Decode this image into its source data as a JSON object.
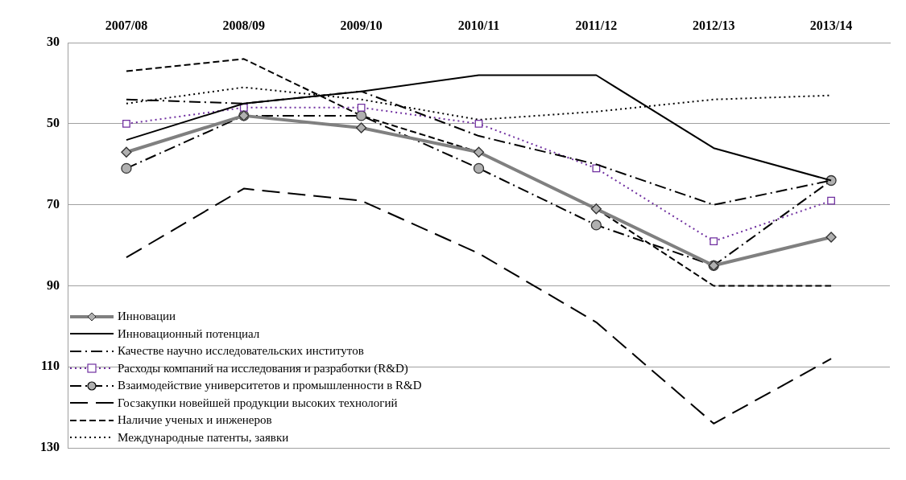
{
  "chart_data": {
    "type": "line",
    "categories": [
      "2007/08",
      "2008/09",
      "2009/10",
      "2010/11",
      "2011/12",
      "2012/13",
      "2013/14"
    ],
    "ylim": [
      130,
      30
    ],
    "yticks": [
      30,
      50,
      70,
      90,
      110,
      130
    ],
    "grid": "y",
    "legend": "bottom left",
    "series": [
      {
        "name": "Инновации",
        "color": "#808080",
        "marker": "diamond",
        "line_style": "solid",
        "values": [
          57,
          48,
          51,
          57,
          71,
          85,
          78
        ]
      },
      {
        "name": "Инновационный потенциал",
        "color": "#000000",
        "marker": "none",
        "line_style": "solid",
        "values": [
          54,
          45,
          42,
          38,
          38,
          56,
          64
        ]
      },
      {
        "name": "Качестве научно исследовательских институтов",
        "color": "#000000",
        "marker": "none",
        "line_style": "dashdot",
        "values": [
          44,
          45,
          42,
          53,
          60,
          70,
          64
        ]
      },
      {
        "name": "Расходы компаний на исследования и разработки (R&D)",
        "color": "#7030a0",
        "marker": "square",
        "line_style": "dotted",
        "values": [
          50,
          46,
          46,
          50,
          61,
          79,
          69
        ]
      },
      {
        "name": "Взаимодействие университетов и промышленности в R&D",
        "color": "#000000",
        "marker": "circle",
        "line_style": "dashdot",
        "values": [
          61,
          48,
          48,
          61,
          75,
          85,
          64
        ]
      },
      {
        "name": "Госзакупки новейшей продукции высоких технологий",
        "color": "#000000",
        "marker": "none",
        "line_style": "longdash",
        "values": [
          83,
          66,
          69,
          82,
          99,
          124,
          108
        ]
      },
      {
        "name": "Наличие ученых и инженеров",
        "color": "#000000",
        "marker": "none",
        "line_style": "dashed",
        "values": [
          37,
          34,
          48,
          57,
          71,
          90,
          90
        ]
      },
      {
        "name": "Международные патенты, заявки",
        "color": "#000000",
        "marker": "none",
        "line_style": "dotted",
        "values": [
          45,
          41,
          44,
          49,
          47,
          44,
          43
        ]
      }
    ]
  }
}
